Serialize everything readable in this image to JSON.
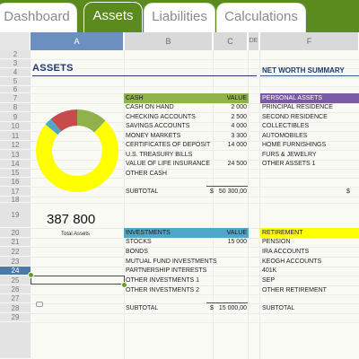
{
  "tabs": [
    {
      "label": "Dashboard"
    },
    {
      "label": "Assets"
    },
    {
      "label": "Liabilities"
    },
    {
      "label": "Calculations"
    }
  ],
  "columns": [
    "A",
    "B",
    "C",
    "DE",
    "F"
  ],
  "rows": [
    "2",
    "3",
    "4",
    "5",
    "6",
    "7",
    "8",
    "9",
    "10",
    "11",
    "12",
    "13",
    "14",
    "15",
    "16",
    "17",
    "18",
    "19",
    "20",
    "21",
    "22",
    "23",
    "24",
    "25",
    "26",
    "27",
    "28",
    "29"
  ],
  "title": "ASSETS",
  "net_worth_title": "NET WORTH SUMMARY",
  "total": {
    "value": "387 800",
    "label": "Total Assets"
  },
  "cash": {
    "header": "CASH",
    "value_header": "VALUE",
    "items": [
      {
        "label": "CASH ON HAND",
        "value": "2 000"
      },
      {
        "label": "CHECKING ACCOUNTS",
        "value": "2 500"
      },
      {
        "label": "SAVINGS ACCOUNTS",
        "value": "4 000"
      },
      {
        "label": "MONEY MARKETS",
        "value": "3 300"
      },
      {
        "label": "CERTIFICATES OF DEPOSIT",
        "value": "14 000"
      },
      {
        "label": "U.S. TREASURY BILLS",
        "value": ""
      },
      {
        "label": "VALUE OF LIFE INSURANCE",
        "value": "24 500"
      },
      {
        "label": "OTHER CASH",
        "value": ""
      }
    ],
    "subtotal_label": "SUBTOTAL",
    "currency": "$",
    "subtotal": "50 300,00"
  },
  "personal": {
    "header": "PERSONAL ASSETS",
    "items": [
      "PRINCIPAL RESIDENCE",
      "SECOND RESIDENCE",
      "COLLECTIBLES",
      "AUTOMOBILES",
      "HOME FURNISHINGS",
      "FURS & JEWELRY",
      "OTHER ASSETS 1"
    ],
    "currency": "$"
  },
  "investments": {
    "header": "INVESTMENTS",
    "value_header": "VALUE",
    "items": [
      {
        "label": "STOCKS",
        "value": "15 000"
      },
      {
        "label": "BONDS",
        "value": ""
      },
      {
        "label": "MUTUAL FUND INVESTMENTS",
        "value": ""
      },
      {
        "label": "PARTNERSHIP INTERESTS",
        "value": ""
      },
      {
        "label": "OTHER INVESTMENTS 1",
        "value": ""
      },
      {
        "label": "OTHER INVESTMENTS 2",
        "value": ""
      }
    ],
    "subtotal_label": "SUBTOTAL",
    "currency": "$",
    "subtotal": "15 000,00"
  },
  "retirement": {
    "header": "RETIREMENT",
    "items": [
      "PENSION",
      "IRA ACCOUNTS",
      "KEOGH ACCOUNTS",
      "401K",
      "SEP",
      "OTHER RETIREMENT"
    ],
    "subtotal_label": "SUBTOTAL"
  },
  "donut": {
    "colors": [
      "#8fb24a",
      "#ffff00",
      "#4fa8c8",
      "#c84a4a"
    ]
  },
  "colors": {
    "tab_green": "#5b8a1f",
    "selected_header": "#6b8fbf"
  }
}
